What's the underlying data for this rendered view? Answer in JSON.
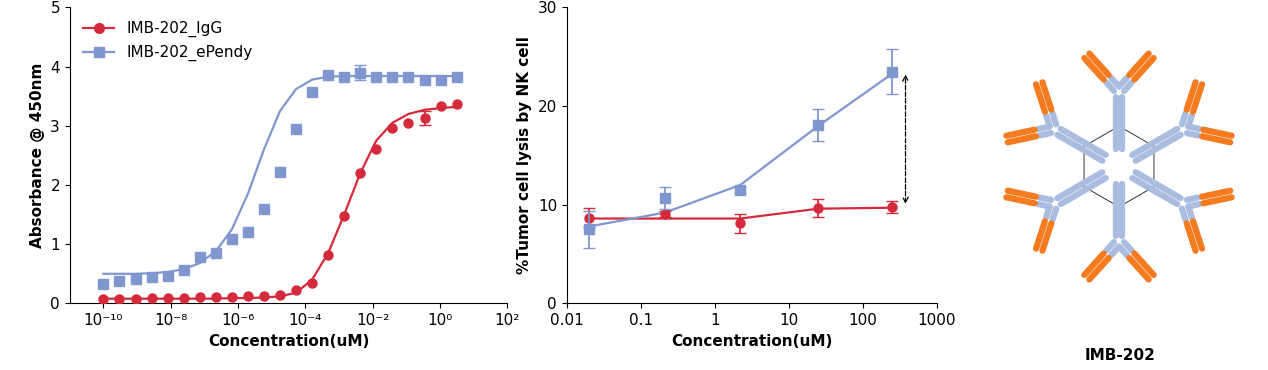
{
  "chart_data": [
    {
      "type": "scatter",
      "xlabel": "Concentration(uM)",
      "ylabel": "Absorbance @ 450nm",
      "log": "x",
      "xlim": [
        1e-11,
        100
      ],
      "xticks": [
        {
          "value": 1e-10,
          "label": "10⁻¹⁰"
        },
        {
          "value": 1e-08,
          "label": "10⁻⁸"
        },
        {
          "value": 1e-06,
          "label": "10⁻⁶"
        },
        {
          "value": 0.0001,
          "label": "10⁻⁴"
        },
        {
          "value": 0.01,
          "label": "10⁻²"
        },
        {
          "value": 1,
          "label": "10⁰"
        },
        {
          "value": 100,
          "label": "10²"
        }
      ],
      "ylim": [
        0,
        5
      ],
      "yticks": [
        0,
        1,
        2,
        3,
        4,
        5
      ],
      "legend": "upper left",
      "x": [
        1e-10,
        3e-10,
        9e-10,
        2.7e-09,
        8.1e-09,
        2.43e-08,
        7.29e-08,
        2.19e-07,
        6.56e-07,
        1.97e-06,
        5.9e-06,
        1.77e-05,
        5.31e-05,
        0.000159,
        0.000478,
        0.00143,
        0.0043,
        0.0129,
        0.0387,
        0.116,
        0.349,
        1.05,
        3.14
      ],
      "series": [
        {
          "name": "IMB-202_IgG",
          "color": "#d42a3c",
          "marker": "circle",
          "values": [
            0.08,
            0.08,
            0.08,
            0.09,
            0.09,
            0.09,
            0.1,
            0.1,
            0.1,
            0.12,
            0.12,
            0.14,
            0.22,
            0.34,
            0.81,
            1.47,
            2.2,
            2.6,
            2.96,
            3.05,
            3.13,
            3.33,
            3.36
          ],
          "errors": [
            null,
            null,
            null,
            null,
            null,
            null,
            null,
            null,
            null,
            null,
            null,
            null,
            null,
            null,
            null,
            null,
            null,
            null,
            null,
            null,
            0.12,
            null,
            null
          ],
          "fit": [
            0.08,
            0.08,
            0.08,
            0.08,
            0.08,
            0.08,
            0.08,
            0.08,
            0.09,
            0.09,
            0.1,
            0.12,
            0.18,
            0.4,
            0.85,
            1.5,
            2.2,
            2.75,
            3.05,
            3.2,
            3.27,
            3.3,
            3.32
          ]
        },
        {
          "name": "IMB-202_ePendy",
          "color": "#7f96cf",
          "marker": "square",
          "values": [
            0.33,
            0.37,
            0.42,
            0.45,
            0.47,
            0.57,
            0.78,
            0.85,
            1.08,
            1.2,
            1.6,
            2.22,
            2.95,
            3.57,
            3.85,
            3.82,
            3.9,
            3.82,
            3.82,
            3.83,
            3.78,
            3.78,
            3.83
          ],
          "errors": [
            null,
            null,
            null,
            null,
            null,
            null,
            null,
            null,
            null,
            null,
            null,
            null,
            null,
            null,
            null,
            null,
            0.12,
            null,
            null,
            null,
            null,
            null,
            null
          ],
          "fit": [
            0.5,
            0.5,
            0.5,
            0.51,
            0.53,
            0.58,
            0.68,
            0.88,
            1.25,
            1.85,
            2.6,
            3.25,
            3.62,
            3.78,
            3.83,
            3.84,
            3.84,
            3.84,
            3.84,
            3.84,
            3.84,
            3.84,
            3.84
          ]
        }
      ]
    },
    {
      "type": "scatter",
      "xlabel": "Concentration(uM)",
      "ylabel": "%Tumor cell lysis by NK cell",
      "log": "x",
      "xlim": [
        0.01,
        1000
      ],
      "xticks": [
        0.01,
        0.1,
        1,
        10,
        100,
        1000
      ],
      "ylim": [
        0,
        30
      ],
      "yticks": [
        0,
        10,
        20,
        30
      ],
      "x": [
        0.02,
        0.21,
        2.2,
        25,
        250
      ],
      "series": [
        {
          "color": "#d42a3c",
          "marker": "circle",
          "values": [
            8.7,
            9.1,
            8.1,
            9.7,
            9.8
          ],
          "errors": [
            1.0,
            0.3,
            1.0,
            0.9,
            0.6
          ],
          "fit": [
            8.6,
            8.6,
            8.6,
            9.6,
            9.7
          ]
        },
        {
          "color": "#7f96cf",
          "marker": "square",
          "values": [
            7.5,
            10.7,
            11.5,
            18.1,
            23.5
          ],
          "errors": [
            1.9,
            1.1,
            0.3,
            1.6,
            2.3
          ],
          "fit": [
            7.8,
            9.2,
            12.0,
            18.0,
            23.3
          ]
        }
      ]
    }
  ],
  "diagram": {
    "label": "IMB-202"
  }
}
